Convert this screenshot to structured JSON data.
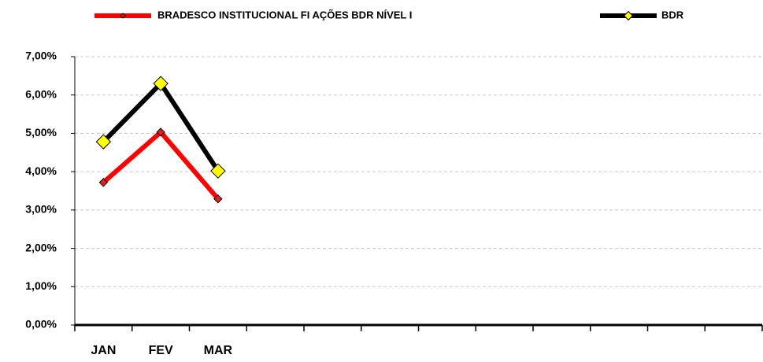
{
  "chart_data": {
    "type": "line",
    "categories": [
      "JAN",
      "FEV",
      "MAR",
      null,
      null,
      null,
      null,
      null,
      null,
      null,
      null,
      null
    ],
    "series": [
      {
        "name": "BRADESCO INSTITUCIONAL FI AÇÕES BDR NÍVEL I",
        "color": "#ff0000",
        "marker_color": "#e02020",
        "values": [
          3.72,
          5.03,
          3.29,
          null,
          null,
          null,
          null,
          null,
          null,
          null,
          null,
          null
        ]
      },
      {
        "name": "BDR",
        "color": "#000000",
        "marker_color": "#ffff00",
        "values": [
          4.78,
          6.3,
          4.02,
          null,
          null,
          null,
          null,
          null,
          null,
          null,
          null,
          null
        ]
      }
    ],
    "ylim": [
      0,
      7
    ],
    "yticks": [
      {
        "value": 0,
        "label": "0,00%"
      },
      {
        "value": 1,
        "label": "1,00%"
      },
      {
        "value": 2,
        "label": "2,00%"
      },
      {
        "value": 3,
        "label": "3,00%"
      },
      {
        "value": 4,
        "label": "4,00%"
      },
      {
        "value": 5,
        "label": "5,00%"
      },
      {
        "value": 6,
        "label": "6,00%"
      },
      {
        "value": 7,
        "label": "7,00%"
      }
    ],
    "grid": true,
    "legend": "top"
  }
}
